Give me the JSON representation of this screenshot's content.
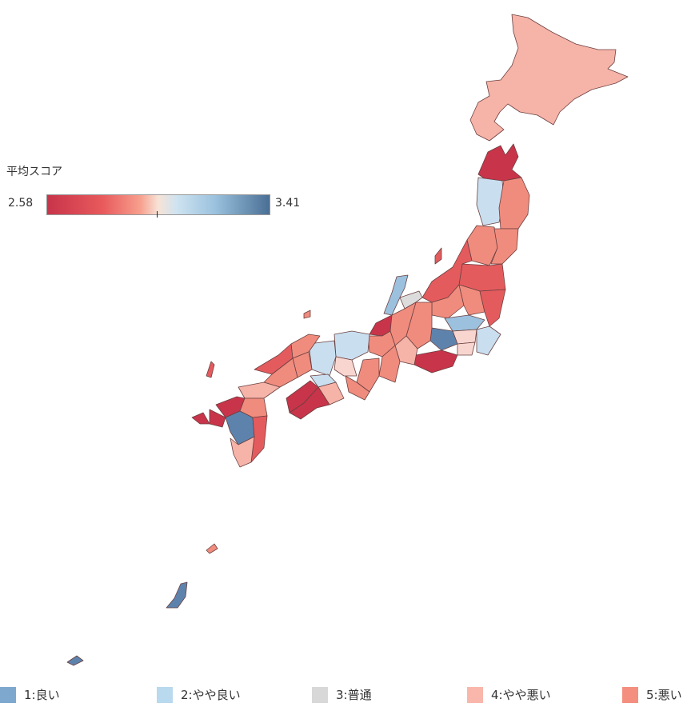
{
  "legend": {
    "title": "平均スコア",
    "min_label": "2.58",
    "max_label": "3.41"
  },
  "categories": [
    {
      "label": "1:良い",
      "color": "#7fa8cf"
    },
    {
      "label": "2:やや良い",
      "color": "#b8d9ee"
    },
    {
      "label": "3:普通",
      "color": "#d8d8d8"
    },
    {
      "label": "4:やや悪い",
      "color": "#f9b7ac"
    },
    {
      "label": "5:悪い",
      "color": "#f48f7f"
    }
  ],
  "region_colors": {
    "dark_red": "#c8344a",
    "red": "#e45b5e",
    "salmon": "#f08c7e",
    "light_salmon": "#f6b3a8",
    "pale": "#f8d6cf",
    "grey": "#dcdcdc",
    "light_blue": "#c9dff0",
    "mid_blue": "#9cc1de",
    "dark_blue": "#5d83ad"
  }
}
